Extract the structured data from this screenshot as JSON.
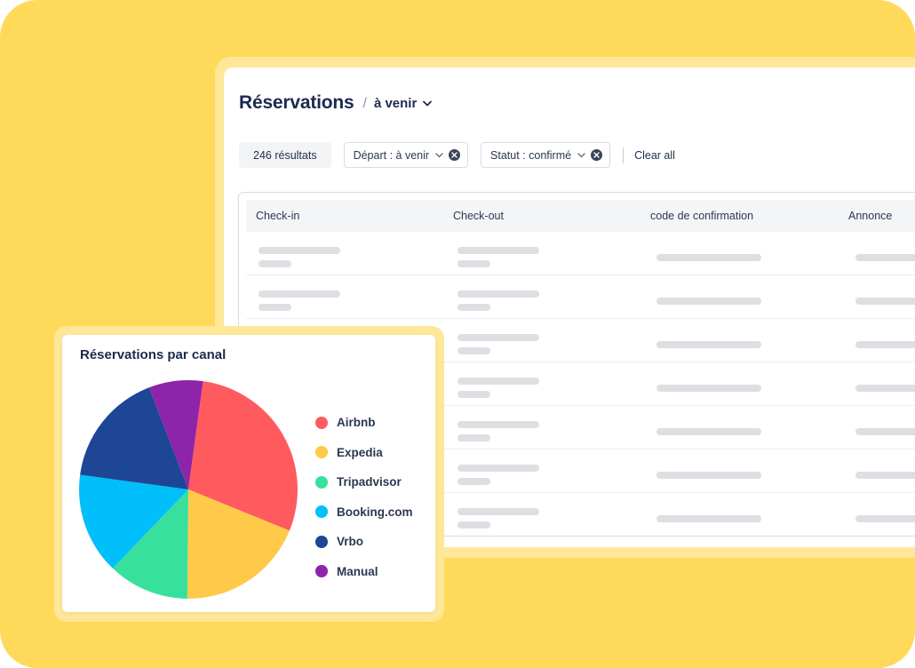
{
  "reservations": {
    "title": "Réservations",
    "breadcrumb_separator": "/",
    "view": "à venir",
    "result_count": "246 résultats",
    "filters": [
      {
        "label": "Départ :  à venir"
      },
      {
        "label": "Statut : confirmé"
      }
    ],
    "clear_all": "Clear all",
    "columns": [
      "Check-in",
      "Check-out",
      "code de confirmation",
      "Annonce"
    ],
    "row_count": 7
  },
  "chart_card": {
    "title": "Réservations par canal"
  },
  "chart_data": {
    "type": "pie",
    "title": "Réservations par canal",
    "categories": [
      "Airbnb",
      "Expedia",
      "Tripadvisor",
      "Booking.com",
      "Vrbo",
      "Manual"
    ],
    "values": [
      29,
      19,
      12,
      15,
      17,
      8
    ],
    "colors": [
      "#FF5B5E",
      "#FFC94A",
      "#38E09E",
      "#00BFFA",
      "#1D4694",
      "#8E24AA"
    ],
    "legend": "right"
  }
}
